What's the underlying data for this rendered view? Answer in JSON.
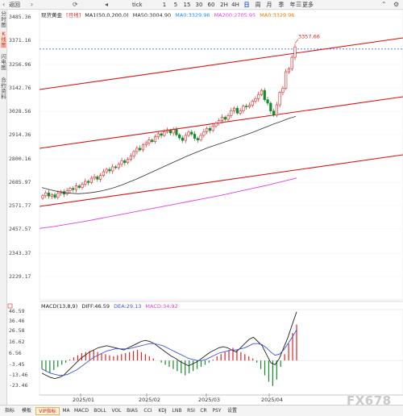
{
  "toolbar": {
    "back_label": "返回",
    "tick_label": "tick",
    "intervals": [
      "1",
      "5",
      "15",
      "30",
      "60",
      "2H",
      "4H",
      "日",
      "周",
      "月",
      "季",
      "年"
    ],
    "selected_interval": "日",
    "more_label": "更多"
  },
  "sidebar": {
    "tabs": [
      {
        "label": "分时图"
      },
      {
        "label": "K线图"
      },
      {
        "label": "闪电图"
      },
      {
        "label": "合约资料"
      }
    ],
    "selected": "K线图"
  },
  "legend": {
    "name": "现货黄金",
    "period": "[日线]",
    "ma_params": "MA1(50,0,200,0)",
    "ma50": "MA50:3004.90",
    "ma0": "MA0:3329.96",
    "ma200": "MA200:2705.95",
    "ma0b": "MA0:3329.96"
  },
  "macd_legend": {
    "title": "MACD(13,8,9)",
    "diff": "DIFF:46.59",
    "dea": "DEA:29.13",
    "macd": "MACD:34.92"
  },
  "price_labels": [
    "3485.36",
    "3371.16",
    "3256.96",
    "3142.76",
    "3028.56",
    "2914.36",
    "2800.16",
    "2685.97",
    "2571.77",
    "2457.57",
    "2343.37",
    "2229.17"
  ],
  "macd_labels": [
    "46.59",
    "36.46",
    "26.58",
    "16.62",
    "6.56",
    "-3.45",
    "-13.46",
    "-23.46"
  ],
  "date_labels": [
    "2025/01",
    "2025/02",
    "2025/03",
    "2025/04"
  ],
  "high_price_label": "3357.66",
  "colors": {
    "up": "#e02222",
    "down": "#178a2e",
    "ma50": "#333333",
    "ma200": "#e040e0",
    "channel": "#dd1111",
    "diff": "#222222",
    "dea": "#3b55d8",
    "dashed_price": "#3a6fd8"
  },
  "bottom_tabs": [
    "指标",
    "模板",
    "VIP指标",
    "MA",
    "MACD",
    "BOLL",
    "VOL",
    "BIAS",
    "CCI",
    "KDJ",
    "LNB",
    "RSI",
    "CR",
    "PSY",
    "设置"
  ],
  "bottom_selected": "VIP指标",
  "watermark": "FX678"
}
